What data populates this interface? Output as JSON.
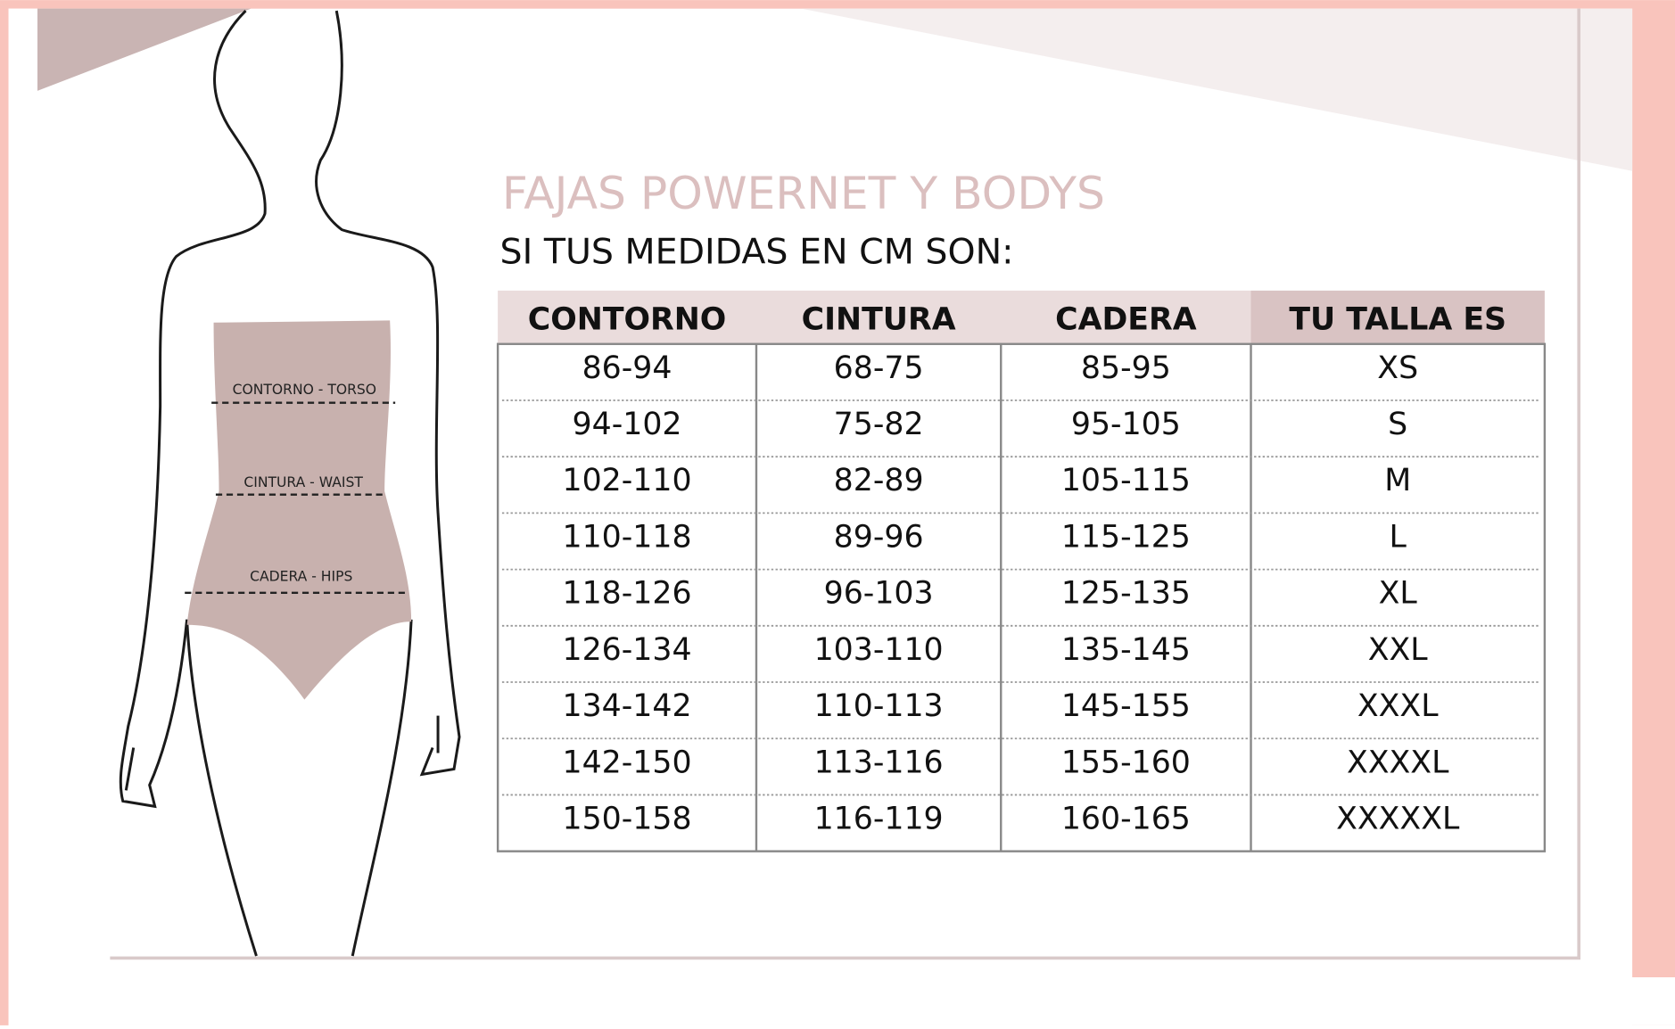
{
  "figure_labels": [
    "CONTORNO - TORSO",
    "CINTURA - WAIST",
    "CADERA - HIPS"
  ],
  "title": "FAJAS POWERNET Y BODYS",
  "subtitle": "SI TUS MEDIDAS EN CM SON:",
  "table": {
    "headers": [
      "CONTORNO",
      "CINTURA",
      "CADERA",
      "TU TALLA ES"
    ],
    "rows": [
      [
        "86-94",
        "68-75",
        "85-95",
        "XS"
      ],
      [
        "94-102",
        "75-82",
        "95-105",
        "S"
      ],
      [
        "102-110",
        "82-89",
        "105-115",
        "M"
      ],
      [
        "110-118",
        "89-96",
        "115-125",
        "L"
      ],
      [
        "118-126",
        "96-103",
        "125-135",
        "XL"
      ],
      [
        "126-134",
        "103-110",
        "135-145",
        "XXL"
      ],
      [
        "134-142",
        "110-113",
        "145-155",
        "XXXL"
      ],
      [
        "142-150",
        "113-116",
        "155-160",
        "XXXXL"
      ],
      [
        "150-158",
        "116-119",
        "160-165",
        "XXXXXL"
      ]
    ]
  }
}
